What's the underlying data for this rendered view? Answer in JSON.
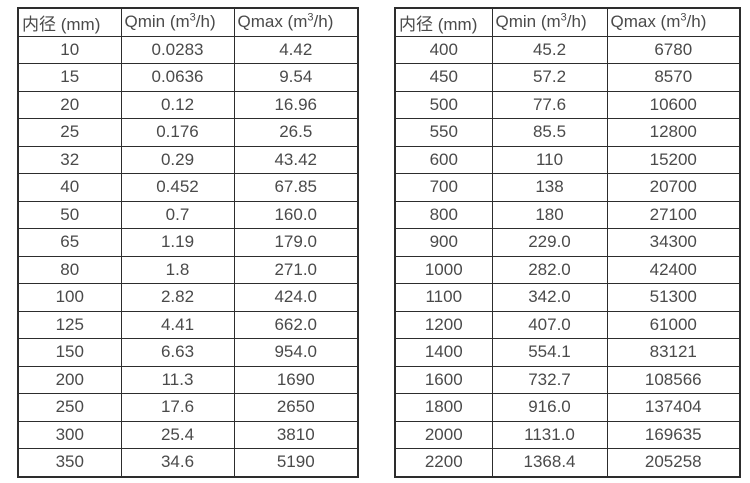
{
  "page": {
    "background": "#ffffff",
    "text_color": "#4a4a4a",
    "border_color": "#2d2d2d"
  },
  "tables": [
    {
      "name": "flow-rate-table-small-diameters",
      "headers": [
        "内径 (mm)",
        "Qmin (m³/h)",
        "Qmax (m³/h)"
      ],
      "rows": [
        [
          "10",
          "0.0283",
          "4.42"
        ],
        [
          "15",
          "0.0636",
          "9.54"
        ],
        [
          "20",
          "0.12",
          "16.96"
        ],
        [
          "25",
          "0.176",
          "26.5"
        ],
        [
          "32",
          "0.29",
          "43.42"
        ],
        [
          "40",
          "0.452",
          "67.85"
        ],
        [
          "50",
          "0.7",
          "160.0"
        ],
        [
          "65",
          "1.19",
          "179.0"
        ],
        [
          "80",
          "1.8",
          "271.0"
        ],
        [
          "100",
          "2.82",
          "424.0"
        ],
        [
          "125",
          "4.41",
          "662.0"
        ],
        [
          "150",
          "6.63",
          "954.0"
        ],
        [
          "200",
          "11.3",
          "1690"
        ],
        [
          "250",
          "17.6",
          "2650"
        ],
        [
          "300",
          "25.4",
          "3810"
        ],
        [
          "350",
          "34.6",
          "5190"
        ]
      ]
    },
    {
      "name": "flow-rate-table-large-diameters",
      "headers": [
        "内径 (mm)",
        "Qmin (m³/h)",
        "Qmax (m³/h)"
      ],
      "rows": [
        [
          "400",
          "45.2",
          "6780"
        ],
        [
          "450",
          "57.2",
          "8570"
        ],
        [
          "500",
          "77.6",
          "10600"
        ],
        [
          "550",
          "85.5",
          "12800"
        ],
        [
          "600",
          "110",
          "15200"
        ],
        [
          "700",
          "138",
          "20700"
        ],
        [
          "800",
          "180",
          "27100"
        ],
        [
          "900",
          "229.0",
          "34300"
        ],
        [
          "1000",
          "282.0",
          "42400"
        ],
        [
          "1100",
          "342.0",
          "51300"
        ],
        [
          "1200",
          "407.0",
          "61000"
        ],
        [
          "1400",
          "554.1",
          "83121"
        ],
        [
          "1600",
          "732.7",
          "108566"
        ],
        [
          "1800",
          "916.0",
          "137404"
        ],
        [
          "2000",
          "1131.0",
          "169635"
        ],
        [
          "2200",
          "1368.4",
          "205258"
        ]
      ]
    }
  ]
}
